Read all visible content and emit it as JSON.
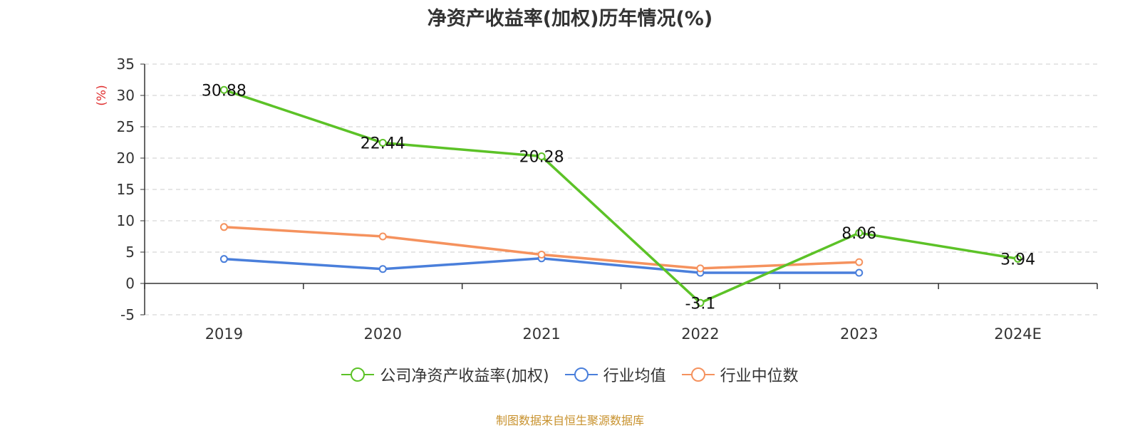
{
  "chart_data": {
    "type": "line",
    "title": "净资产收益率(加权)历年情况(%)",
    "ylabel": "(%)",
    "categories": [
      "2019",
      "2020",
      "2021",
      "2022",
      "2023",
      "2024E"
    ],
    "ylim": [
      -5,
      35
    ],
    "yticks": [
      35,
      30,
      25,
      20,
      15,
      10,
      5,
      0,
      -5
    ],
    "grid": true,
    "legend_position": "bottom",
    "series": [
      {
        "name": "公司净资产收益率(加权)",
        "color": "#5cc227",
        "values": [
          30.88,
          22.44,
          20.28,
          -3.1,
          8.06,
          3.94
        ],
        "labels": [
          "30.88",
          "22.44",
          "20.28",
          "-3.1",
          "8.06",
          "3.94"
        ]
      },
      {
        "name": "行业均值",
        "color": "#4a7fdb",
        "values": [
          3.9,
          2.3,
          4.0,
          1.7,
          1.7,
          null
        ]
      },
      {
        "name": "行业中位数",
        "color": "#f5925e",
        "values": [
          9.0,
          7.5,
          4.6,
          2.4,
          3.4,
          null
        ]
      }
    ]
  },
  "source_note": "制图数据来自恒生聚源数据库",
  "colors": {
    "ylabel": "#e03030",
    "source_note": "#c8922e",
    "axis": "#333333",
    "grid": "#cccccc"
  }
}
